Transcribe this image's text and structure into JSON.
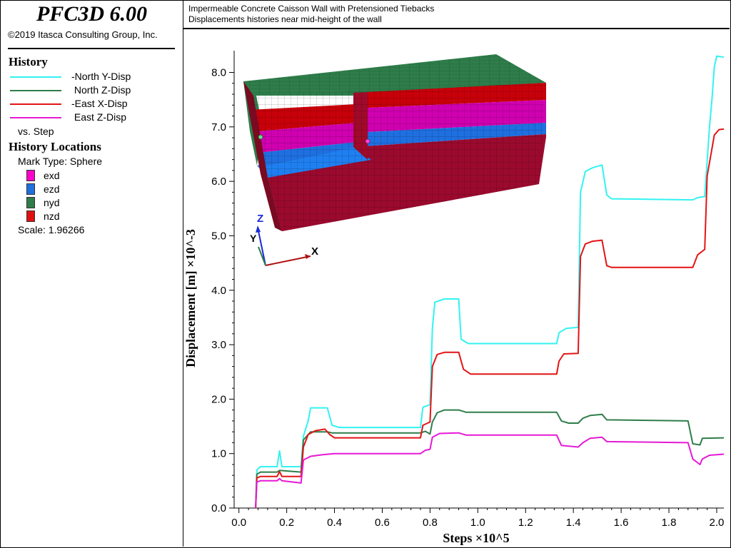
{
  "app": {
    "title": "PFC3D 6.00",
    "copyright": "©2019 Itasca Consulting Group, Inc."
  },
  "header": {
    "line1": "Impermeable Concrete Caisson Wall with Pretensioned Tiebacks",
    "line2": "Displacements histories near mid-height of the wall"
  },
  "legend": {
    "history_heading": "History",
    "items": [
      {
        "label": "-North Y-Disp",
        "color": "#33f2f2"
      },
      {
        "label": " North Z-Disp",
        "color": "#2e7d4a"
      },
      {
        "label": "-East X-Disp",
        "color": "#e31414"
      },
      {
        "label": " East Z-Disp",
        "color": "#e619d6"
      }
    ],
    "vs_label": "vs. Step",
    "locations_heading": "History Locations",
    "mark_type": "Mark Type: Sphere",
    "marks": [
      {
        "label": "exd",
        "color": "#ff00cc"
      },
      {
        "label": "ezd",
        "color": "#1f6fe0"
      },
      {
        "label": "nyd",
        "color": "#2e7d4a"
      },
      {
        "label": "nzd",
        "color": "#e01010"
      }
    ],
    "scale": "Scale: 1.96266"
  },
  "axes_triad": {
    "z": "Z",
    "y": "Y",
    "x": "X",
    "z_color": "#1a2bd8",
    "y_color": "#2e7d4a",
    "x_color": "#b01010"
  },
  "chart_data": {
    "type": "line",
    "title": "",
    "xlabel": "Steps ×10^5",
    "ylabel": "Displacement [m] ×10^-3",
    "xlim": [
      -0.02,
      2.03
    ],
    "ylim": [
      0,
      8.4
    ],
    "x_ticks": [
      "0.0",
      "0.2",
      "0.4",
      "0.6",
      "0.8",
      "1.0",
      "1.2",
      "1.4",
      "1.6",
      "1.8",
      "2.0"
    ],
    "y_ticks": [
      "0.0",
      "1.0",
      "2.0",
      "3.0",
      "4.0",
      "5.0",
      "6.0",
      "7.0",
      "8.0"
    ],
    "grid": false,
    "series": [
      {
        "name": "-North Y-Disp",
        "color": "#33f2f2",
        "points": [
          [
            0.07,
            0
          ],
          [
            0.075,
            0.7
          ],
          [
            0.09,
            0.76
          ],
          [
            0.16,
            0.76
          ],
          [
            0.17,
            1.05
          ],
          [
            0.18,
            0.76
          ],
          [
            0.26,
            0.76
          ],
          [
            0.27,
            1.32
          ],
          [
            0.29,
            1.6
          ],
          [
            0.3,
            1.84
          ],
          [
            0.37,
            1.84
          ],
          [
            0.39,
            1.52
          ],
          [
            0.42,
            1.48
          ],
          [
            0.6,
            1.48
          ],
          [
            0.76,
            1.48
          ],
          [
            0.77,
            1.85
          ],
          [
            0.8,
            1.9
          ],
          [
            0.81,
            3.3
          ],
          [
            0.82,
            3.78
          ],
          [
            0.86,
            3.84
          ],
          [
            0.92,
            3.84
          ],
          [
            0.93,
            3.1
          ],
          [
            0.96,
            3.02
          ],
          [
            1.0,
            3.02
          ],
          [
            1.33,
            3.02
          ],
          [
            1.34,
            3.22
          ],
          [
            1.37,
            3.3
          ],
          [
            1.42,
            3.32
          ],
          [
            1.43,
            5.8
          ],
          [
            1.45,
            6.18
          ],
          [
            1.48,
            6.25
          ],
          [
            1.52,
            6.3
          ],
          [
            1.54,
            5.75
          ],
          [
            1.56,
            5.68
          ],
          [
            1.9,
            5.66
          ],
          [
            1.92,
            5.7
          ],
          [
            1.95,
            5.72
          ],
          [
            1.97,
            7.0
          ],
          [
            1.98,
            7.5
          ],
          [
            1.99,
            8.1
          ],
          [
            2.0,
            8.3
          ],
          [
            2.03,
            8.28
          ]
        ]
      },
      {
        "name": " North Z-Disp",
        "color": "#2e7d4a",
        "points": [
          [
            0.07,
            0
          ],
          [
            0.075,
            0.62
          ],
          [
            0.09,
            0.66
          ],
          [
            0.16,
            0.66
          ],
          [
            0.17,
            0.69
          ],
          [
            0.26,
            0.66
          ],
          [
            0.27,
            1.25
          ],
          [
            0.29,
            1.35
          ],
          [
            0.3,
            1.4
          ],
          [
            0.37,
            1.4
          ],
          [
            0.39,
            1.38
          ],
          [
            0.44,
            1.38
          ],
          [
            0.76,
            1.38
          ],
          [
            0.78,
            1.41
          ],
          [
            0.8,
            1.36
          ],
          [
            0.81,
            1.58
          ],
          [
            0.83,
            1.75
          ],
          [
            0.86,
            1.8
          ],
          [
            0.92,
            1.8
          ],
          [
            0.95,
            1.76
          ],
          [
            1.33,
            1.76
          ],
          [
            1.35,
            1.6
          ],
          [
            1.38,
            1.56
          ],
          [
            1.42,
            1.56
          ],
          [
            1.44,
            1.65
          ],
          [
            1.47,
            1.7
          ],
          [
            1.52,
            1.72
          ],
          [
            1.54,
            1.62
          ],
          [
            1.88,
            1.6
          ],
          [
            1.9,
            1.18
          ],
          [
            1.93,
            1.16
          ],
          [
            1.94,
            1.28
          ],
          [
            2.03,
            1.29
          ]
        ]
      },
      {
        "name": "-East X-Disp",
        "color": "#e31414",
        "points": [
          [
            0.07,
            0
          ],
          [
            0.075,
            0.55
          ],
          [
            0.09,
            0.58
          ],
          [
            0.16,
            0.58
          ],
          [
            0.17,
            0.67
          ],
          [
            0.18,
            0.58
          ],
          [
            0.26,
            0.58
          ],
          [
            0.27,
            1.12
          ],
          [
            0.29,
            1.35
          ],
          [
            0.32,
            1.42
          ],
          [
            0.36,
            1.45
          ],
          [
            0.38,
            1.35
          ],
          [
            0.4,
            1.29
          ],
          [
            0.76,
            1.29
          ],
          [
            0.77,
            1.52
          ],
          [
            0.8,
            1.58
          ],
          [
            0.81,
            2.6
          ],
          [
            0.83,
            2.82
          ],
          [
            0.86,
            2.86
          ],
          [
            0.92,
            2.86
          ],
          [
            0.94,
            2.55
          ],
          [
            0.97,
            2.46
          ],
          [
            1.33,
            2.46
          ],
          [
            1.34,
            2.7
          ],
          [
            1.36,
            2.83
          ],
          [
            1.42,
            2.84
          ],
          [
            1.43,
            4.62
          ],
          [
            1.45,
            4.85
          ],
          [
            1.48,
            4.9
          ],
          [
            1.52,
            4.92
          ],
          [
            1.54,
            4.45
          ],
          [
            1.56,
            4.42
          ],
          [
            1.9,
            4.42
          ],
          [
            1.92,
            4.65
          ],
          [
            1.95,
            4.75
          ],
          [
            1.96,
            6.1
          ],
          [
            1.98,
            6.6
          ],
          [
            1.99,
            6.85
          ],
          [
            2.01,
            6.95
          ],
          [
            2.03,
            6.96
          ]
        ]
      },
      {
        "name": " East Z-Disp",
        "color": "#e619d6",
        "points": [
          [
            0.07,
            0
          ],
          [
            0.075,
            0.48
          ],
          [
            0.09,
            0.5
          ],
          [
            0.16,
            0.5
          ],
          [
            0.17,
            0.54
          ],
          [
            0.18,
            0.5
          ],
          [
            0.26,
            0.46
          ],
          [
            0.27,
            0.88
          ],
          [
            0.3,
            0.95
          ],
          [
            0.35,
            0.98
          ],
          [
            0.4,
            1.0
          ],
          [
            0.76,
            1.0
          ],
          [
            0.78,
            1.06
          ],
          [
            0.8,
            1.08
          ],
          [
            0.81,
            1.3
          ],
          [
            0.84,
            1.37
          ],
          [
            0.92,
            1.38
          ],
          [
            0.95,
            1.34
          ],
          [
            1.33,
            1.34
          ],
          [
            1.35,
            1.15
          ],
          [
            1.42,
            1.12
          ],
          [
            1.44,
            1.2
          ],
          [
            1.47,
            1.28
          ],
          [
            1.52,
            1.3
          ],
          [
            1.54,
            1.22
          ],
          [
            1.88,
            1.2
          ],
          [
            1.9,
            0.9
          ],
          [
            1.93,
            0.8
          ],
          [
            1.94,
            0.9
          ],
          [
            1.97,
            0.97
          ],
          [
            2.03,
            0.99
          ]
        ]
      }
    ]
  }
}
